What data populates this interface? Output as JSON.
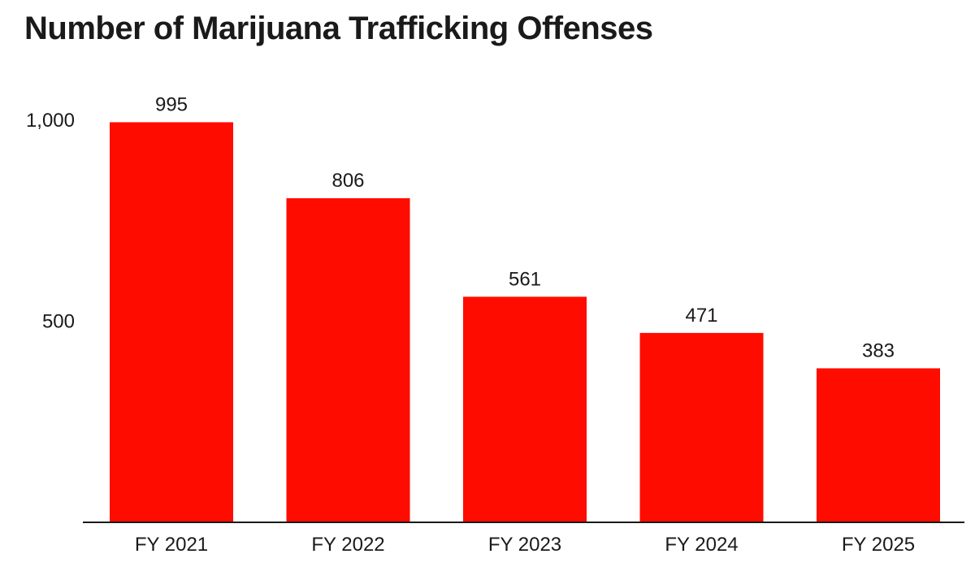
{
  "chart_data": {
    "type": "bar",
    "title": "Number of Marijuana Trafficking Offenses",
    "categories": [
      "FY 2021",
      "FY 2022",
      "FY 2023",
      "FY 2024",
      "FY 2025"
    ],
    "values": [
      995,
      806,
      561,
      471,
      383
    ],
    "data_labels": [
      "995",
      "806",
      "561",
      "471",
      "383"
    ],
    "yticks": [
      500,
      1000
    ],
    "ytick_labels": [
      "500",
      "1,000"
    ],
    "ylim": [
      0,
      1000
    ],
    "xlabel": "",
    "ylabel": "",
    "grid": false,
    "legend": "none",
    "bar_color": "#ff0c00"
  }
}
